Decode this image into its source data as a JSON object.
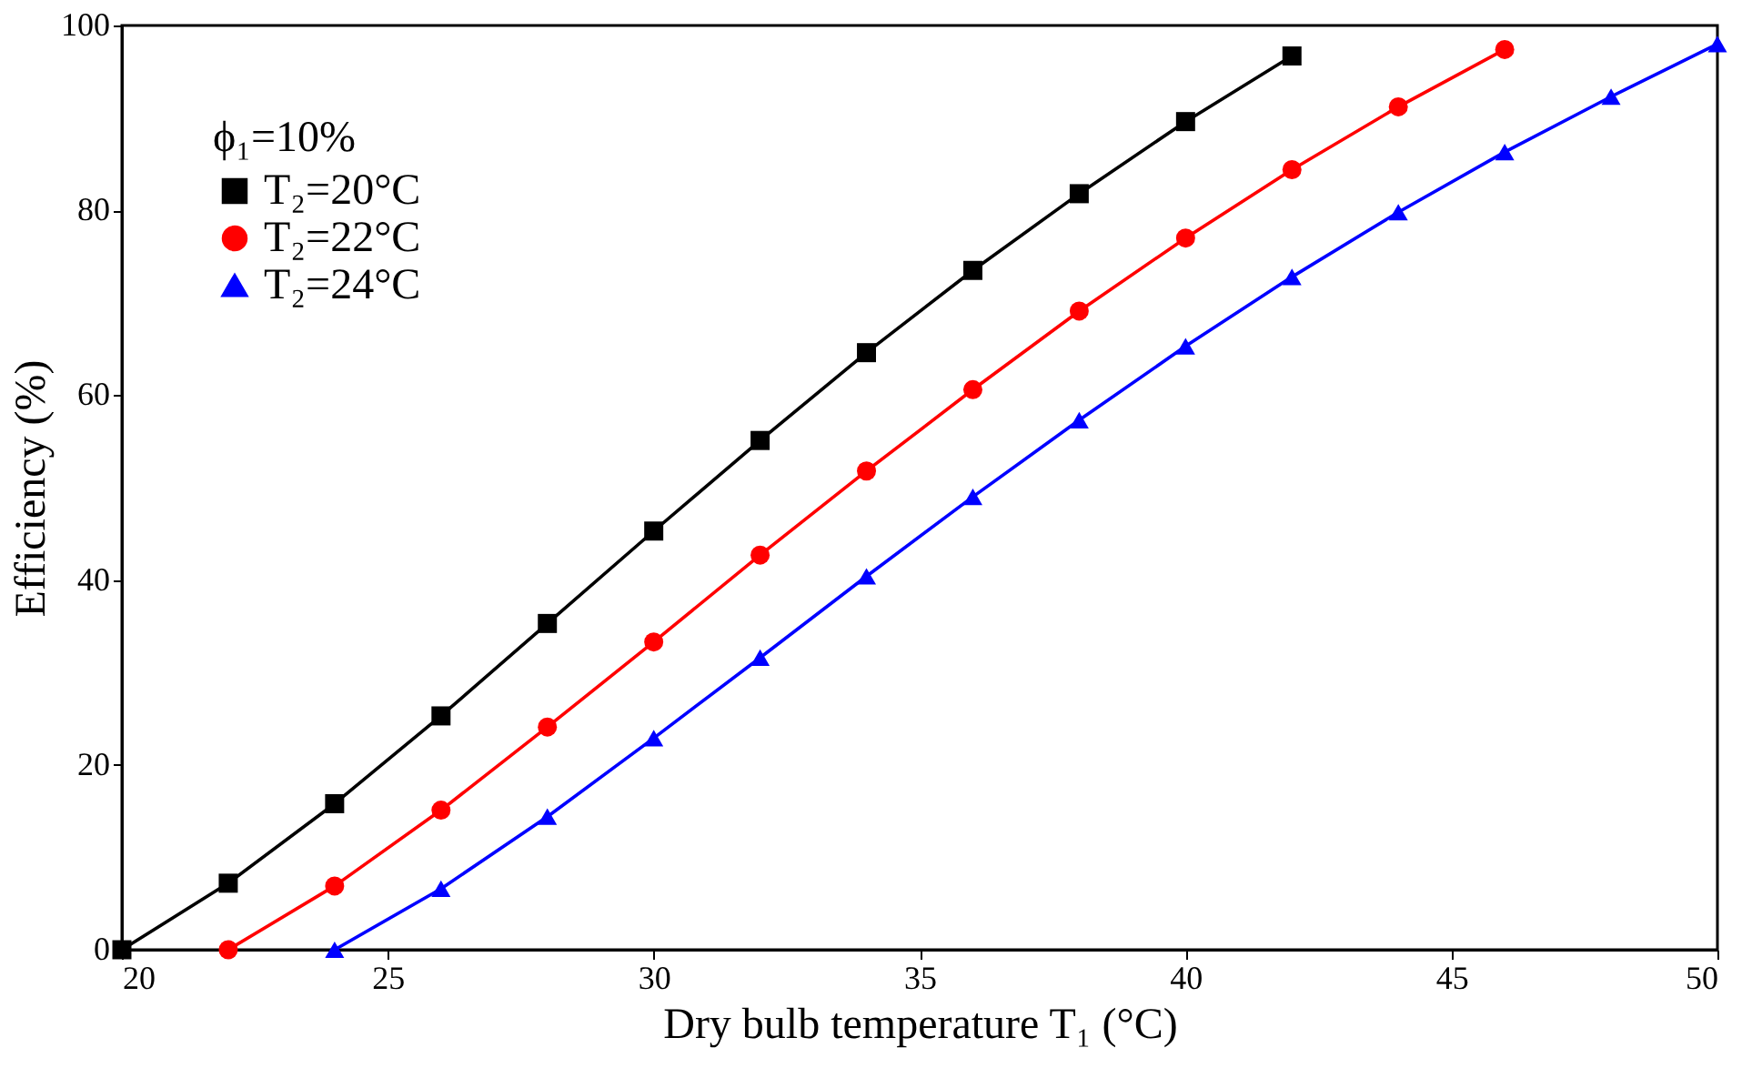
{
  "chart_data": {
    "type": "line",
    "xlabel": "Dry bulb temperature T₁ (°C)",
    "ylabel": "Efficiency (%)",
    "legend_title": "ϕ₁=10%",
    "legend": "top left",
    "grid": false,
    "xlim": [
      20,
      50
    ],
    "xticks": [
      20,
      25,
      30,
      35,
      40,
      45,
      50
    ],
    "ylim": [
      0,
      100
    ],
    "yticks": [
      0,
      20,
      40,
      60,
      80,
      100
    ],
    "line_style": "solid",
    "series": [
      {
        "name": "T₂=20°C",
        "color": "#000000",
        "marker": "square",
        "x": [
          20,
          22,
          24,
          26,
          28,
          30,
          32,
          34,
          36,
          38,
          40,
          42
        ],
        "values": [
          0,
          7.2,
          15.8,
          25.3,
          35.3,
          45.3,
          55.1,
          64.6,
          73.5,
          81.8,
          89.6,
          96.7
        ]
      },
      {
        "name": "T₂=22°C",
        "color": "#ff0000",
        "marker": "circle",
        "x": [
          22,
          24,
          26,
          28,
          30,
          32,
          34,
          36,
          38,
          40,
          42,
          44,
          46
        ],
        "values": [
          0,
          6.9,
          15.1,
          24.1,
          33.3,
          42.7,
          51.8,
          60.6,
          69.1,
          77.0,
          84.4,
          91.2,
          97.4
        ]
      },
      {
        "name": "T₂=24°C",
        "color": "#0000ff",
        "marker": "triangle",
        "x": [
          24,
          26,
          28,
          30,
          32,
          34,
          36,
          38,
          40,
          42,
          44,
          46,
          48,
          50
        ],
        "values": [
          0,
          6.6,
          14.4,
          22.9,
          31.6,
          40.4,
          49.0,
          57.3,
          65.3,
          72.8,
          79.8,
          86.3,
          92.3,
          98.0
        ]
      }
    ]
  }
}
